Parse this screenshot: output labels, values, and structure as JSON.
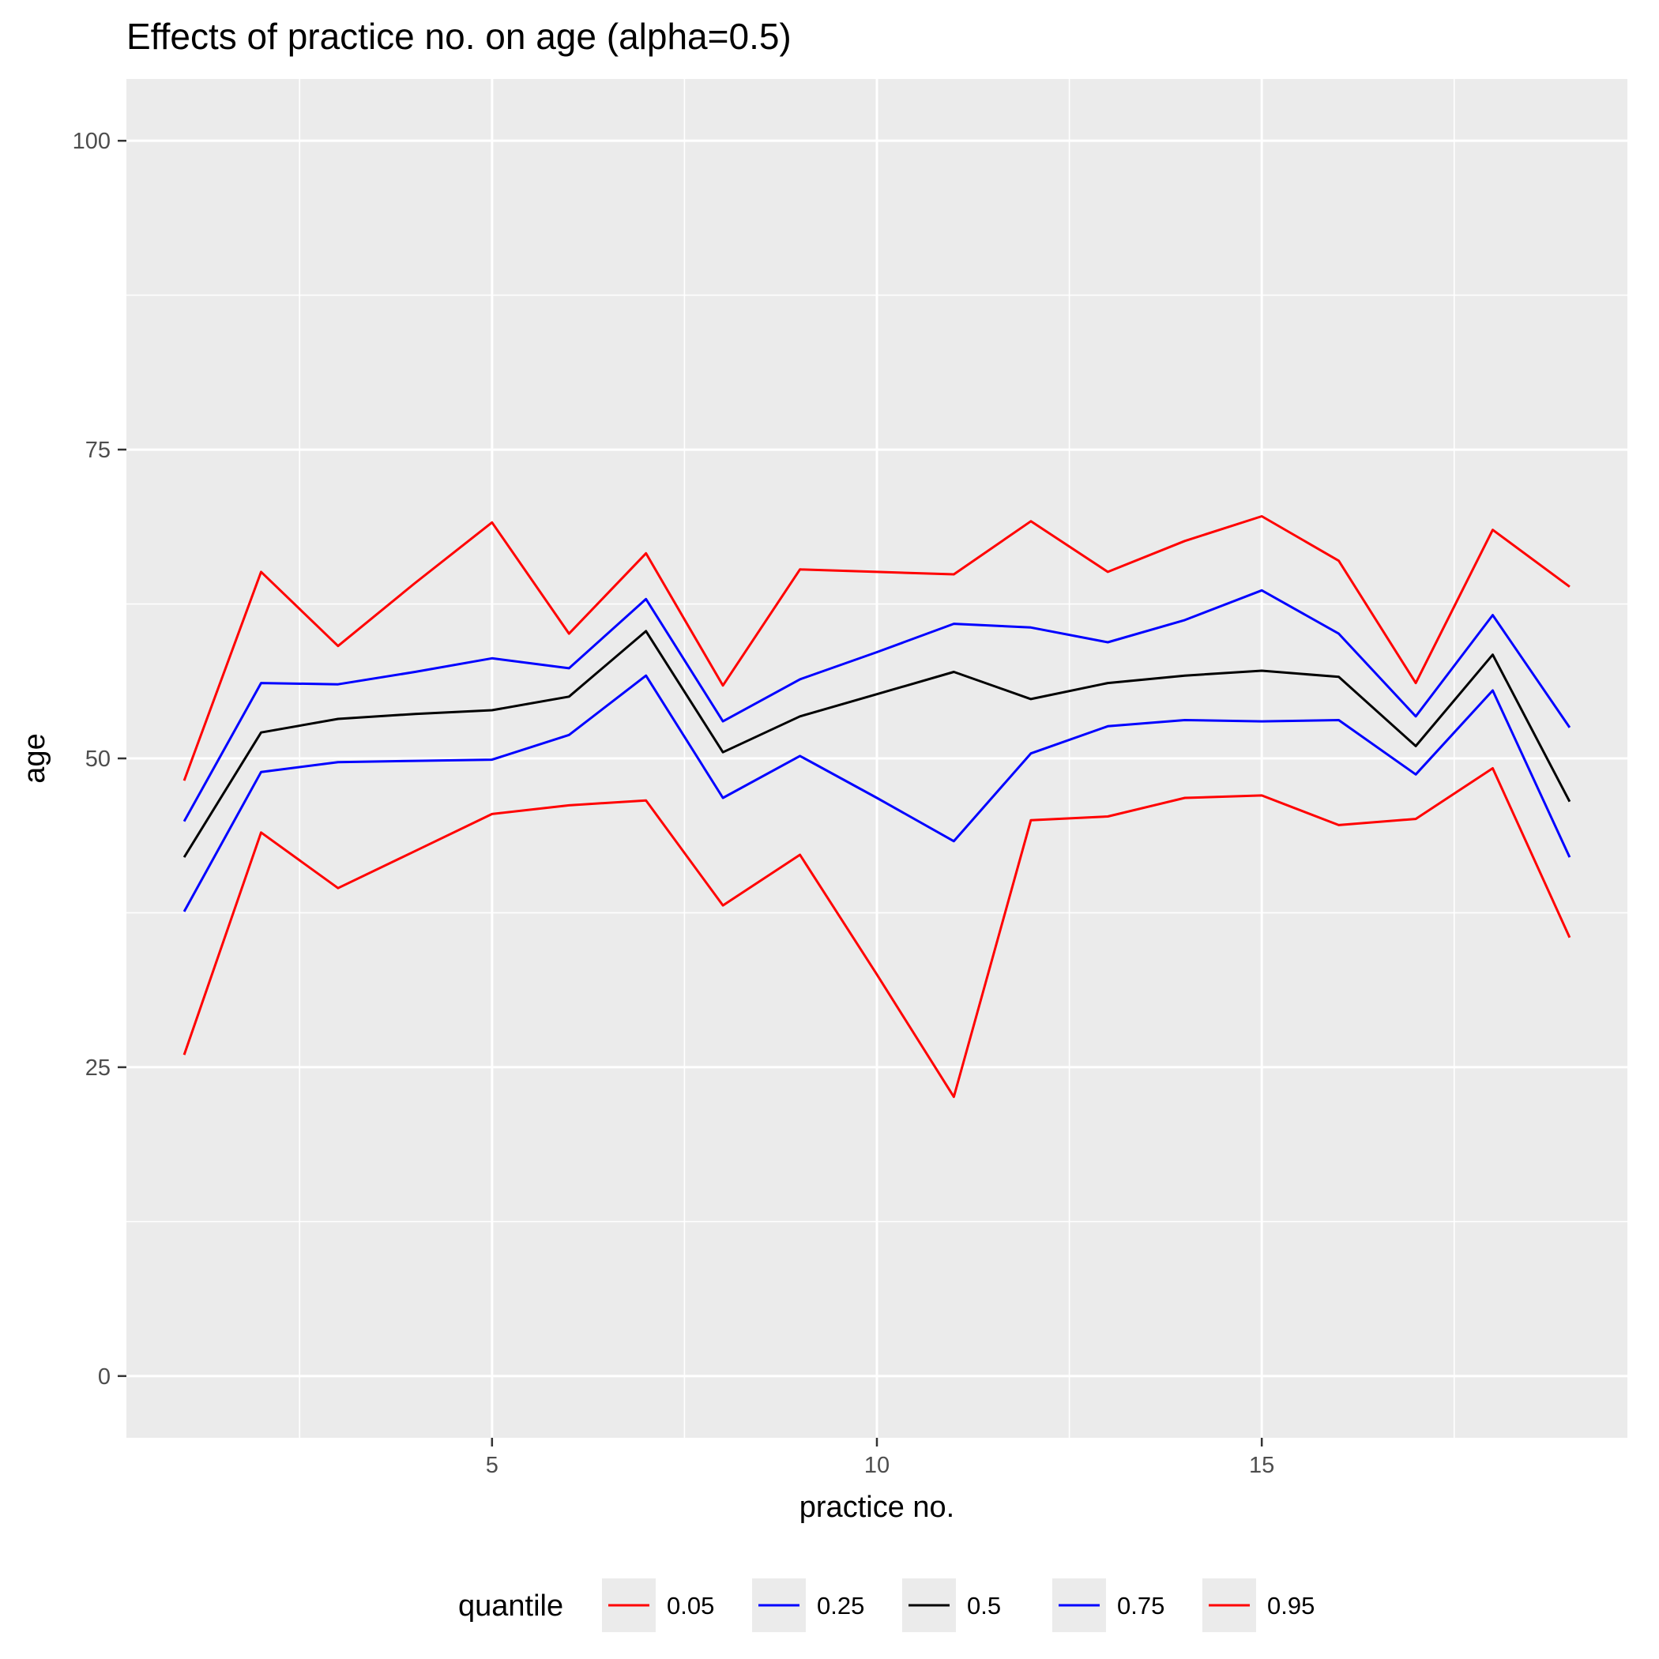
{
  "chart_data": {
    "type": "line",
    "title": "Effects of practice no. on age (alpha=0.5)",
    "xlabel": "practice no.",
    "ylabel": "age",
    "xlim": [
      0.25,
      19.75
    ],
    "ylim": [
      -5,
      105
    ],
    "x_ticks": [
      5,
      10,
      15
    ],
    "x_minor_ticks": [
      2.5,
      7.5,
      12.5,
      17.5
    ],
    "y_ticks": [
      0,
      25,
      50,
      75,
      100
    ],
    "y_minor_ticks": [
      12.5,
      37.5,
      62.5,
      87.5
    ],
    "grid": true,
    "legend_position": "bottom",
    "legend_title": "quantile",
    "x": [
      1,
      2,
      3,
      4,
      5,
      6,
      7,
      8,
      9,
      10,
      11,
      12,
      13,
      14,
      15,
      16,
      17,
      18,
      19
    ],
    "series": [
      {
        "name": "0.05",
        "color": "#ff0000",
        "values": [
          26,
          44,
          39.5,
          42.5,
          45.5,
          46.2,
          46.6,
          38.1,
          42.2,
          32.5,
          22.6,
          45,
          45.3,
          46.8,
          47,
          44.6,
          45.1,
          49.2,
          35.5
        ]
      },
      {
        "name": "0.25",
        "color": "#0000ff",
        "values": [
          37.6,
          48.9,
          49.7,
          49.8,
          49.9,
          51.9,
          56.7,
          46.8,
          50.2,
          46.8,
          43.3,
          50.4,
          52.6,
          53.1,
          53,
          53.1,
          48.7,
          55.5,
          42
        ]
      },
      {
        "name": "0.5",
        "color": "#000000",
        "values": [
          42,
          52.1,
          53.2,
          53.6,
          53.9,
          55,
          60.3,
          50.5,
          53.4,
          55.2,
          57,
          54.8,
          56.1,
          56.7,
          57.1,
          56.6,
          51,
          58.4,
          46.5
        ]
      },
      {
        "name": "0.75",
        "color": "#0000ff",
        "values": [
          44.9,
          56.1,
          56,
          57,
          58.1,
          57.3,
          62.9,
          53,
          56.4,
          58.6,
          60.9,
          60.6,
          59.4,
          61.2,
          63.6,
          60.1,
          53.4,
          61.6,
          52.5
        ]
      },
      {
        "name": "0.95",
        "color": "#ff0000",
        "values": [
          48.2,
          65.1,
          59.1,
          64.2,
          69.1,
          60.1,
          66.6,
          55.9,
          65.3,
          65.1,
          64.9,
          69.2,
          65.1,
          67.6,
          69.6,
          66,
          56.1,
          68.5,
          63.9
        ]
      }
    ]
  }
}
